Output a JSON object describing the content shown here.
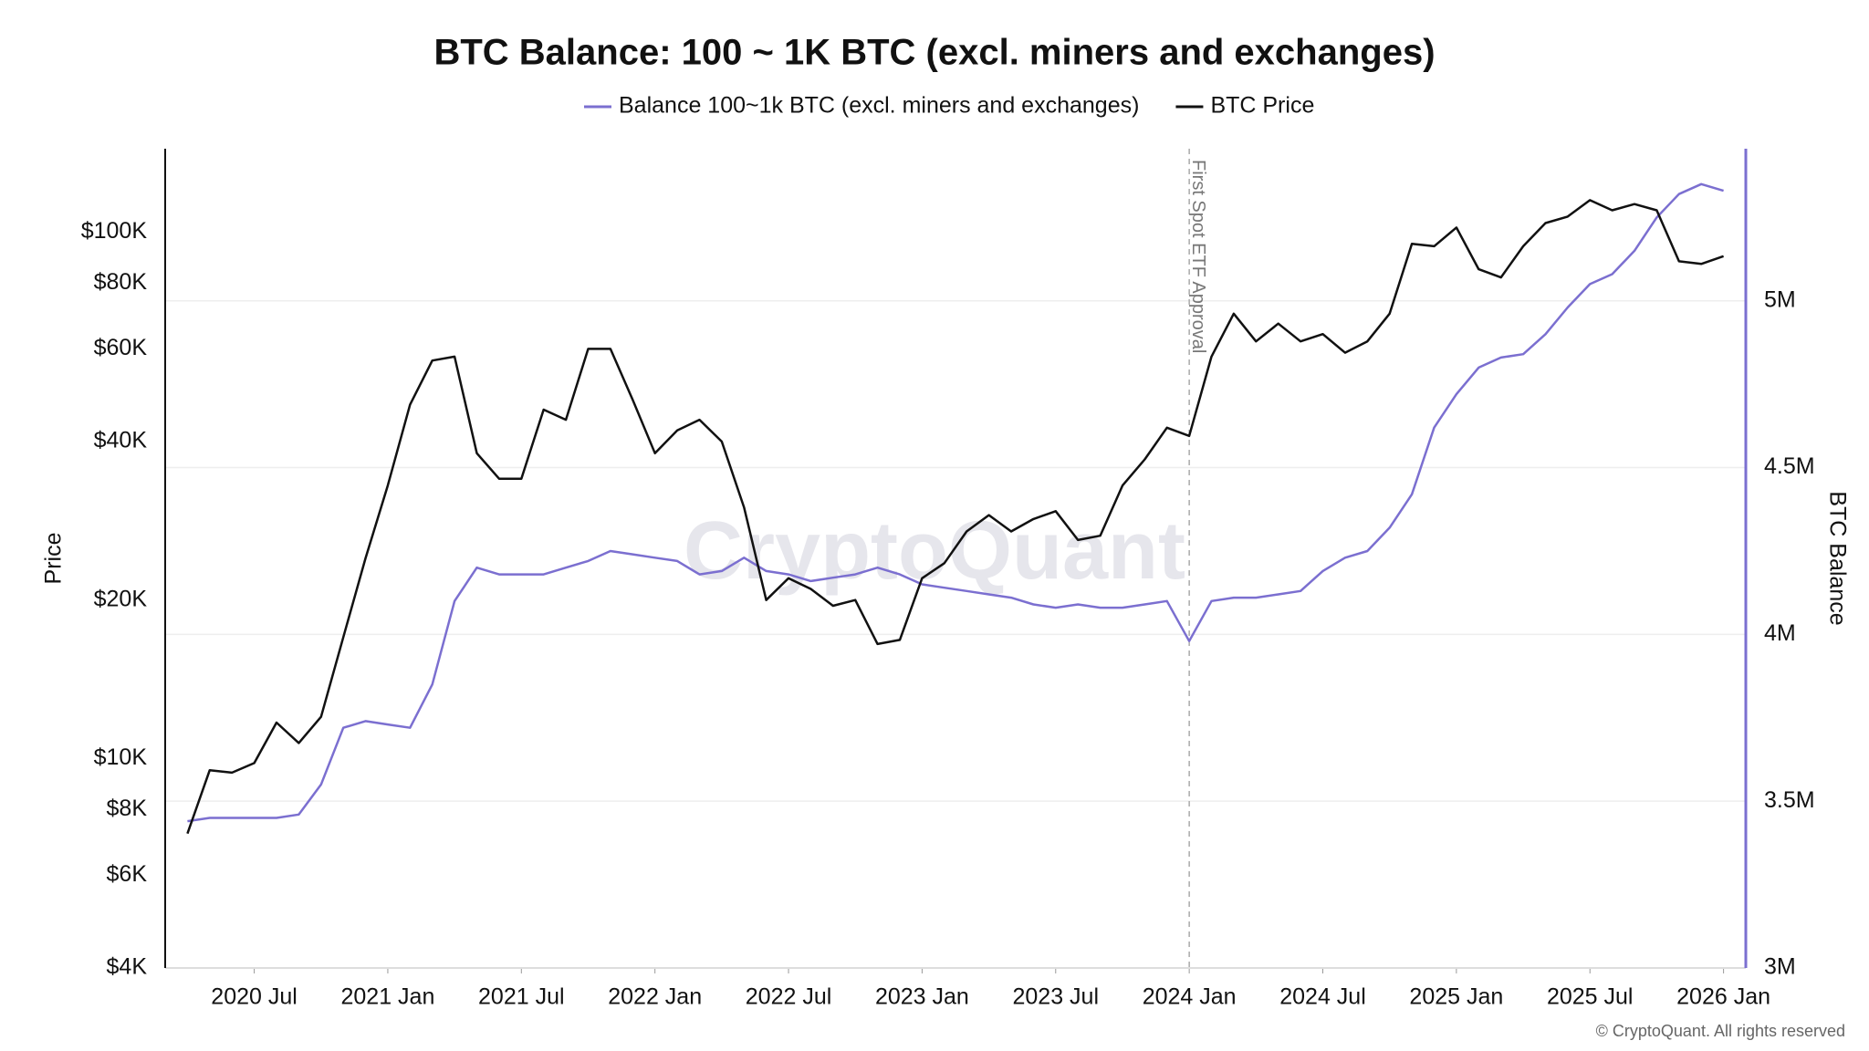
{
  "chart_data": {
    "type": "line",
    "title": "BTC Balance: 100 ~ 1K BTC (excl. miners and exchanges)",
    "watermark": "CryptoQuant",
    "copyright": "© CryptoQuant. All rights reserved",
    "y_label": "Price",
    "y2_label": "BTC Balance",
    "log_y": true,
    "grid": true,
    "legend": "top",
    "annotation": {
      "text": "First Spot ETF Approval",
      "x": "2024-01"
    },
    "x": [
      "2020-04",
      "2020-05",
      "2020-06",
      "2020-07",
      "2020-08",
      "2020-09",
      "2020-10",
      "2020-11",
      "2020-12",
      "2021-01",
      "2021-02",
      "2021-03",
      "2021-04",
      "2021-05",
      "2021-06",
      "2021-07",
      "2021-08",
      "2021-09",
      "2021-10",
      "2021-11",
      "2021-12",
      "2022-01",
      "2022-02",
      "2022-03",
      "2022-04",
      "2022-05",
      "2022-06",
      "2022-07",
      "2022-08",
      "2022-09",
      "2022-10",
      "2022-11",
      "2022-12",
      "2023-01",
      "2023-02",
      "2023-03",
      "2023-04",
      "2023-05",
      "2023-06",
      "2023-07",
      "2023-08",
      "2023-09",
      "2023-10",
      "2023-11",
      "2023-12",
      "2024-01",
      "2024-02",
      "2024-03",
      "2024-04",
      "2024-05",
      "2024-06",
      "2024-07",
      "2024-08",
      "2024-09",
      "2024-10",
      "2024-11",
      "2024-12",
      "2025-01",
      "2025-02",
      "2025-03",
      "2025-04",
      "2025-05",
      "2025-06",
      "2025-07",
      "2025-08",
      "2025-09",
      "2025-10",
      "2025-11",
      "2025-12",
      "2026-01"
    ],
    "xlim": [
      "2020-03",
      "2026-02"
    ],
    "xticks": [
      {
        "value": "2020-07",
        "label": "2020 Jul"
      },
      {
        "value": "2021-01",
        "label": "2021 Jan"
      },
      {
        "value": "2021-07",
        "label": "2021 Jul"
      },
      {
        "value": "2022-01",
        "label": "2022 Jan"
      },
      {
        "value": "2022-07",
        "label": "2022 Jul"
      },
      {
        "value": "2023-01",
        "label": "2023 Jan"
      },
      {
        "value": "2023-07",
        "label": "2023 Jul"
      },
      {
        "value": "2024-01",
        "label": "2024 Jan"
      },
      {
        "value": "2024-07",
        "label": "2024 Jul"
      },
      {
        "value": "2025-01",
        "label": "2025 Jan"
      },
      {
        "value": "2025-07",
        "label": "2025 Jul"
      },
      {
        "value": "2026-01",
        "label": "2026 Jan"
      }
    ],
    "ylim": [
      4000,
      144000
    ],
    "yticks": [
      {
        "value": 4000,
        "label": "$4K"
      },
      {
        "value": 6000,
        "label": "$6K"
      },
      {
        "value": 8000,
        "label": "$8K"
      },
      {
        "value": 10000,
        "label": "$10K"
      },
      {
        "value": 20000,
        "label": "$20K"
      },
      {
        "value": 40000,
        "label": "$40K"
      },
      {
        "value": 60000,
        "label": "$60K"
      },
      {
        "value": 80000,
        "label": "$80K"
      },
      {
        "value": 100000,
        "label": "$100K"
      }
    ],
    "y2lim": [
      3000000,
      5456000
    ],
    "y2ticks": [
      {
        "value": 3000000,
        "label": "3M"
      },
      {
        "value": 3500000,
        "label": "3.5M"
      },
      {
        "value": 4000000,
        "label": "4M"
      },
      {
        "value": 4500000,
        "label": "4.5M"
      },
      {
        "value": 5000000,
        "label": "5M"
      }
    ],
    "series": [
      {
        "name": "Balance 100~1k BTC (excl. miners and exchanges)",
        "color": "#7b6fd0",
        "axis": "y2",
        "values": [
          3440000,
          3450000,
          3450000,
          3450000,
          3450000,
          3460000,
          3550000,
          3720000,
          3740000,
          3730000,
          3720000,
          3850000,
          4100000,
          4200000,
          4180000,
          4180000,
          4180000,
          4200000,
          4220000,
          4250000,
          4240000,
          4230000,
          4220000,
          4180000,
          4190000,
          4230000,
          4190000,
          4180000,
          4160000,
          4170000,
          4180000,
          4200000,
          4180000,
          4150000,
          4140000,
          4130000,
          4120000,
          4110000,
          4090000,
          4080000,
          4090000,
          4080000,
          4080000,
          4090000,
          4100000,
          3980000,
          4100000,
          4110000,
          4110000,
          4120000,
          4130000,
          4190000,
          4230000,
          4250000,
          4320000,
          4420000,
          4620000,
          4720000,
          4800000,
          4830000,
          4840000,
          4900000,
          4980000,
          5050000,
          5080000,
          5150000,
          5250000,
          5320000,
          5350000,
          5330000
        ]
      },
      {
        "name": "BTC Price",
        "color": "#111111",
        "values": [
          7200,
          9500,
          9400,
          9800,
          11700,
          10700,
          12000,
          17000,
          24000,
          33000,
          47000,
          57000,
          58000,
          38000,
          34000,
          34000,
          46000,
          44000,
          60000,
          60000,
          48000,
          38000,
          42000,
          44000,
          40000,
          30000,
          20000,
          22000,
          21000,
          19500,
          20000,
          16500,
          16800,
          22000,
          23500,
          27000,
          29000,
          27000,
          28500,
          29500,
          26000,
          26500,
          33000,
          37000,
          42500,
          41000,
          58000,
          70000,
          62000,
          67000,
          62000,
          64000,
          59000,
          62000,
          70000,
          95000,
          94000,
          102000,
          85000,
          82000,
          94000,
          104000,
          107000,
          115000,
          110000,
          113000,
          110000,
          88000,
          87000,
          90000
        ]
      }
    ]
  }
}
